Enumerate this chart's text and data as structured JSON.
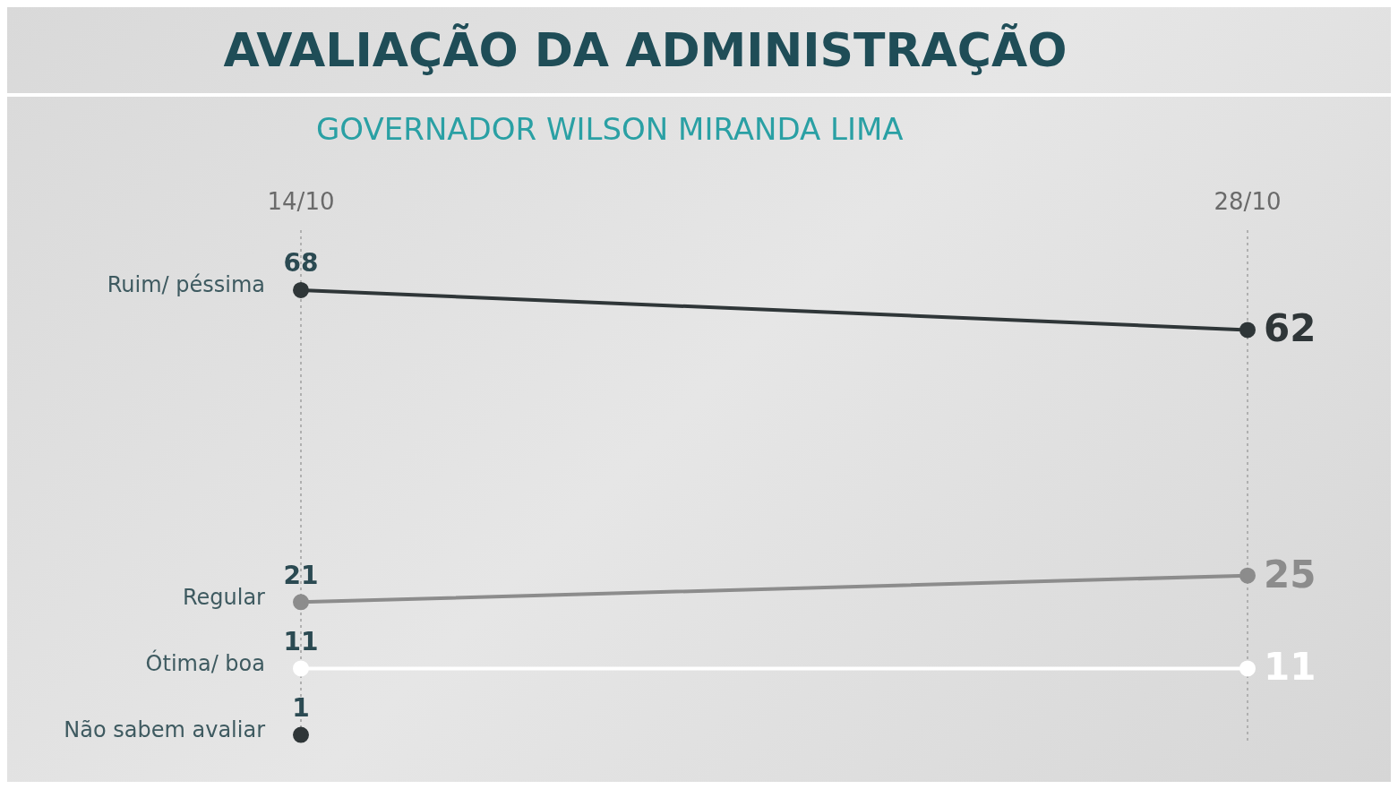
{
  "chart_data": {
    "type": "line",
    "title": "AVALIAÇÃO DA ADMINISTRAÇÃO",
    "subtitle": "GOVERNADOR WILSON MIRANDA LIMA",
    "categories": [
      "14/10",
      "28/10"
    ],
    "series": [
      {
        "name": "Ruim/ péssima",
        "color": "#2f3638",
        "values": [
          68,
          62
        ]
      },
      {
        "name": "Regular",
        "color": "#8c8c8c",
        "values": [
          21,
          25
        ]
      },
      {
        "name": "Ótima/ boa",
        "color": "#ffffff",
        "values": [
          11,
          11
        ]
      },
      {
        "name": "Não sabem avaliar",
        "color": "#2f3638",
        "values": [
          1,
          null
        ]
      }
    ],
    "ylim": [
      0,
      77
    ],
    "grid": "x",
    "tick_labels": "x",
    "marker": "circle",
    "line_style": "solid",
    "data_labels": true,
    "legend": false
  }
}
